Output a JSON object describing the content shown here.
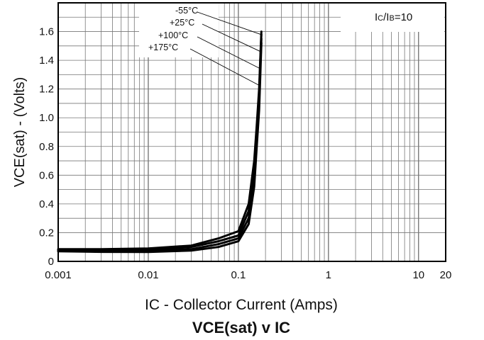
{
  "chart_data": {
    "type": "line",
    "title": "VCE(sat) v IC",
    "xlabel": "IC - Collector Current (Amps)",
    "ylabel": "VCE(sat) - (Volts)",
    "x_scale": "log",
    "xlim": [
      0.001,
      20
    ],
    "ylim": [
      0,
      1.8
    ],
    "grid": true,
    "x_ticks": [
      {
        "value": 0.001,
        "label": "0.001"
      },
      {
        "value": 0.01,
        "label": "0.01"
      },
      {
        "value": 0.1,
        "label": "0.1"
      },
      {
        "value": 1,
        "label": "1"
      },
      {
        "value": 10,
        "label": "10"
      },
      {
        "value": 20,
        "label": "20"
      }
    ],
    "y_ticks": [
      {
        "value": 0,
        "label": "0"
      },
      {
        "value": 0.2,
        "label": "0.2"
      },
      {
        "value": 0.4,
        "label": "0.4"
      },
      {
        "value": 0.6,
        "label": "0.6"
      },
      {
        "value": 0.8,
        "label": "0.8"
      },
      {
        "value": 1.0,
        "label": "1.0"
      },
      {
        "value": 1.2,
        "label": "1.2"
      },
      {
        "value": 1.4,
        "label": "1.4"
      },
      {
        "value": 1.6,
        "label": "1.6"
      }
    ],
    "condition": "IC/IB=10",
    "series": [
      {
        "name": "-55°C",
        "x": [
          0.001,
          0.003,
          0.01,
          0.03,
          0.06,
          0.1,
          0.13,
          0.15,
          0.16,
          0.17,
          0.175,
          0.18
        ],
        "y": [
          0.085,
          0.085,
          0.09,
          0.11,
          0.16,
          0.21,
          0.4,
          0.7,
          0.95,
          1.2,
          1.4,
          1.6
        ]
      },
      {
        "name": "+25°C",
        "x": [
          0.001,
          0.003,
          0.01,
          0.03,
          0.06,
          0.1,
          0.13,
          0.15,
          0.16,
          0.17,
          0.175,
          0.18
        ],
        "y": [
          0.08,
          0.078,
          0.08,
          0.1,
          0.14,
          0.18,
          0.35,
          0.65,
          0.9,
          1.15,
          1.38,
          1.58
        ]
      },
      {
        "name": "+100°C",
        "x": [
          0.001,
          0.003,
          0.01,
          0.03,
          0.06,
          0.1,
          0.13,
          0.15,
          0.16,
          0.17,
          0.175,
          0.18
        ],
        "y": [
          0.075,
          0.072,
          0.072,
          0.085,
          0.12,
          0.16,
          0.3,
          0.58,
          0.85,
          1.1,
          1.33,
          1.55
        ]
      },
      {
        "name": "+175°C",
        "x": [
          0.001,
          0.003,
          0.01,
          0.03,
          0.06,
          0.1,
          0.13,
          0.15,
          0.16,
          0.17,
          0.175,
          0.18
        ],
        "y": [
          0.07,
          0.066,
          0.065,
          0.075,
          0.1,
          0.14,
          0.26,
          0.52,
          0.8,
          1.05,
          1.28,
          1.52
        ]
      }
    ]
  }
}
